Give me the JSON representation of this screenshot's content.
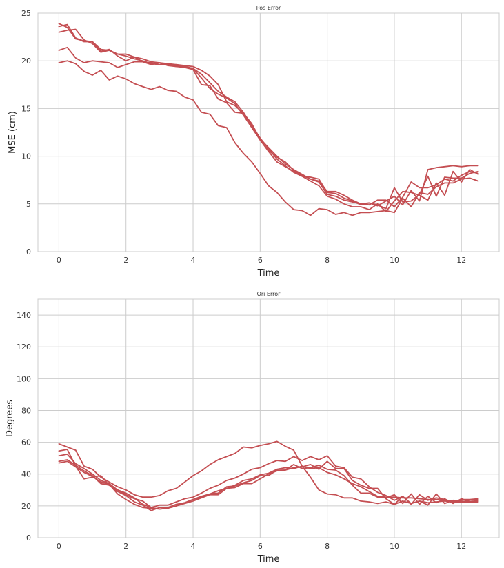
{
  "chart_data": [
    {
      "type": "line",
      "title": "Pos Error",
      "xlabel": "Time",
      "ylabel": "MSE (cm)",
      "xlim": [
        -0.625,
        13.125
      ],
      "ylim": [
        0,
        25
      ],
      "xticks": [
        0,
        2,
        4,
        6,
        8,
        10,
        12
      ],
      "xtick_labels": [
        "0",
        "2",
        "4",
        "6",
        "8",
        "10",
        "12"
      ],
      "yticks": [
        0,
        5,
        10,
        15,
        20,
        25
      ],
      "ytick_labels": [
        "0",
        "5",
        "10",
        "15",
        "20",
        "25"
      ],
      "grid": true,
      "line_color": "#c44e52",
      "x": [
        0,
        0.25,
        0.5,
        0.75,
        1,
        1.25,
        1.5,
        1.75,
        2,
        2.25,
        2.5,
        2.75,
        3,
        3.25,
        3.5,
        3.75,
        4,
        4.25,
        4.5,
        4.75,
        5,
        5.25,
        5.5,
        5.75,
        6,
        6.25,
        6.5,
        6.75,
        7,
        7.25,
        7.5,
        7.75,
        8,
        8.25,
        8.5,
        8.75,
        9,
        9.25,
        9.5,
        9.75,
        10,
        10.25,
        10.5,
        10.75,
        11,
        11.25,
        11.5,
        11.75,
        12,
        12.25,
        12.5
      ],
      "series": [
        {
          "values": [
            23.9,
            23.5,
            22.3,
            22.1,
            22.0,
            21.2,
            21.1,
            20.7,
            20.7,
            20.4,
            20.2,
            19.9,
            19.8,
            19.7,
            19.6,
            19.5,
            19.4,
            19.0,
            18.4,
            17.5,
            15.7,
            15.3,
            14.5,
            13.4,
            11.8,
            10.9,
            10.0,
            9.2,
            8.6,
            8.1,
            7.6,
            7.4,
            6.3,
            6.3,
            5.9,
            5.4,
            5.0,
            4.9,
            5.4,
            5.4,
            4.7,
            5.7,
            7.3,
            6.7,
            6.7,
            7.0,
            7.6,
            7.4,
            8.0,
            8.4,
            8.2
          ]
        },
        {
          "values": [
            23.6,
            23.8,
            22.4,
            22.0,
            22.0,
            21.0,
            21.2,
            20.5,
            20.0,
            20.4,
            19.9,
            19.8,
            19.6,
            19.7,
            19.5,
            19.4,
            19.2,
            18.6,
            17.7,
            16.8,
            16.2,
            15.7,
            14.6,
            13.2,
            11.9,
            10.8,
            9.7,
            9.0,
            8.3,
            7.9,
            7.8,
            7.6,
            6.2,
            6.1,
            5.6,
            5.3,
            4.9,
            5.1,
            4.9,
            4.5,
            6.7,
            5.2,
            5.3,
            6.0,
            7.9,
            5.8,
            7.8,
            7.7,
            7.7,
            8.2,
            8.4
          ]
        },
        {
          "values": [
            23.0,
            23.2,
            23.3,
            22.2,
            21.8,
            20.9,
            21.1,
            20.7,
            20.5,
            20.2,
            20.0,
            19.7,
            19.6,
            19.6,
            19.4,
            19.4,
            19.2,
            18.2,
            17.1,
            16.5,
            16.1,
            15.5,
            14.3,
            13.0,
            11.7,
            10.6,
            9.9,
            9.4,
            8.5,
            8.0,
            7.6,
            7.3,
            6.0,
            5.8,
            5.4,
            5.2,
            5.0,
            5.1,
            4.8,
            5.3,
            5.8,
            4.9,
            6.4,
            5.3,
            8.6,
            8.8,
            8.9,
            9.0,
            8.9,
            9.0,
            9.0
          ]
        },
        {
          "values": [
            21.1,
            21.4,
            20.3,
            19.8,
            20.0,
            19.9,
            19.8,
            19.3,
            19.6,
            19.9,
            19.9,
            19.6,
            19.8,
            19.5,
            19.4,
            19.3,
            19.1,
            17.5,
            17.4,
            16.0,
            15.6,
            14.6,
            14.5,
            13.2,
            11.7,
            10.5,
            9.4,
            8.9,
            8.4,
            7.9,
            7.4,
            6.9,
            5.8,
            5.5,
            5.0,
            4.7,
            4.7,
            4.4,
            5.0,
            4.2,
            5.3,
            6.3,
            6.2,
            5.9,
            5.4,
            7.2,
            5.9,
            8.4,
            7.3,
            8.6,
            8.1
          ]
        },
        {
          "values": [
            19.8,
            20.0,
            19.7,
            18.9,
            18.5,
            19.0,
            18.0,
            18.4,
            18.1,
            17.6,
            17.3,
            17.0,
            17.3,
            16.9,
            16.8,
            16.2,
            15.9,
            14.6,
            14.4,
            13.2,
            13.0,
            11.4,
            10.3,
            9.4,
            8.2,
            6.9,
            6.2,
            5.2,
            4.4,
            4.3,
            3.8,
            4.5,
            4.4,
            3.9,
            4.1,
            3.8,
            4.1,
            4.1,
            4.2,
            4.3,
            4.1,
            5.6,
            4.7,
            6.2,
            6.0,
            6.8,
            7.2,
            7.2,
            7.6,
            7.7,
            7.4
          ]
        }
      ]
    },
    {
      "type": "line",
      "title": "Ori Error",
      "xlabel": "Time",
      "ylabel": "Degrees",
      "xlim": [
        -0.625,
        13.125
      ],
      "ylim": [
        0,
        150
      ],
      "xticks": [
        0,
        2,
        4,
        6,
        8,
        10,
        12
      ],
      "xtick_labels": [
        "0",
        "2",
        "4",
        "6",
        "8",
        "10",
        "12"
      ],
      "yticks": [
        0,
        20,
        40,
        60,
        80,
        100,
        120,
        140
      ],
      "ytick_labels": [
        "0",
        "20",
        "40",
        "60",
        "80",
        "100",
        "120",
        "140"
      ],
      "grid": true,
      "line_color": "#c44e52",
      "x": [
        0,
        0.25,
        0.5,
        0.75,
        1,
        1.25,
        1.5,
        1.75,
        2,
        2.25,
        2.5,
        2.75,
        3,
        3.25,
        3.5,
        3.75,
        4,
        4.25,
        4.5,
        4.75,
        5,
        5.25,
        5.5,
        5.75,
        6,
        6.25,
        6.5,
        6.75,
        7,
        7.25,
        7.5,
        7.75,
        8,
        8.25,
        8.5,
        8.75,
        9,
        9.25,
        9.5,
        9.75,
        10,
        10.25,
        10.5,
        10.75,
        11,
        11.25,
        11.5,
        11.75,
        12,
        12.25,
        12.5
      ],
      "series": [
        {
          "values": [
            59,
            57,
            55,
            45,
            43,
            38,
            35,
            32,
            30,
            27,
            25.5,
            25.5,
            26.5,
            29.5,
            31,
            35,
            39,
            42,
            46,
            49,
            51,
            53,
            57,
            56.5,
            58,
            59,
            60.5,
            57.5,
            55,
            45,
            38,
            30,
            27.5,
            27,
            25,
            25,
            23,
            22.5,
            21.5,
            22.5,
            21,
            23,
            21.5,
            23,
            22,
            22.5,
            23,
            22.5,
            22.5,
            22.5,
            23
          ]
        },
        {
          "values": [
            54.5,
            55.5,
            45,
            37,
            38,
            39,
            33,
            30,
            28,
            25,
            21,
            19,
            20.5,
            20.5,
            22.5,
            24.5,
            25.5,
            28,
            31,
            33,
            36,
            37.5,
            40,
            43,
            44,
            46.5,
            48.5,
            48,
            51,
            48.5,
            51,
            49,
            51.5,
            45,
            44,
            38,
            37,
            32,
            28.5,
            26.5,
            23.5,
            26,
            21,
            27,
            23.5,
            25,
            24,
            22.5,
            24,
            24,
            24.5
          ]
        },
        {
          "values": [
            51.5,
            52.5,
            46.5,
            43.5,
            40,
            36,
            34,
            30,
            27,
            24.5,
            23,
            19,
            18,
            18.5,
            20,
            22,
            24,
            26,
            27.5,
            29.5,
            31,
            33,
            36,
            37,
            39.5,
            40.5,
            43,
            44,
            43.5,
            45,
            43.5,
            44,
            41,
            39.5,
            37,
            34,
            32,
            29,
            26,
            25.5,
            25.5,
            25,
            25,
            24.5,
            24,
            24,
            23.5,
            23,
            23,
            22.5,
            22.5
          ]
        },
        {
          "values": [
            48,
            49,
            45.5,
            42,
            39,
            34,
            33,
            29,
            26.5,
            22.5,
            20.5,
            17,
            19,
            19,
            21,
            22,
            24,
            25.5,
            27.5,
            28,
            32,
            32.5,
            34.5,
            36,
            39,
            39,
            42.5,
            42.5,
            46,
            43.5,
            44,
            45.5,
            43,
            42.5,
            39,
            33,
            28,
            28,
            25.5,
            25,
            27,
            21.5,
            27.5,
            21,
            26,
            22,
            24.5,
            21.5,
            24.5,
            22.5,
            23.5
          ]
        },
        {
          "values": [
            47,
            48,
            44.5,
            41,
            38.5,
            35,
            33.5,
            27.5,
            24,
            21,
            19,
            18.5,
            18,
            18.5,
            20,
            21.5,
            23,
            25,
            27,
            27,
            31,
            31.5,
            34,
            34,
            37,
            40,
            42,
            42.5,
            44,
            44.5,
            46,
            43,
            48,
            43.5,
            43.5,
            36,
            33,
            31,
            31,
            24.5,
            21,
            26,
            21.5,
            23,
            20.5,
            27.5,
            21.5,
            23.5,
            22.5,
            23.5,
            24
          ]
        }
      ]
    }
  ]
}
